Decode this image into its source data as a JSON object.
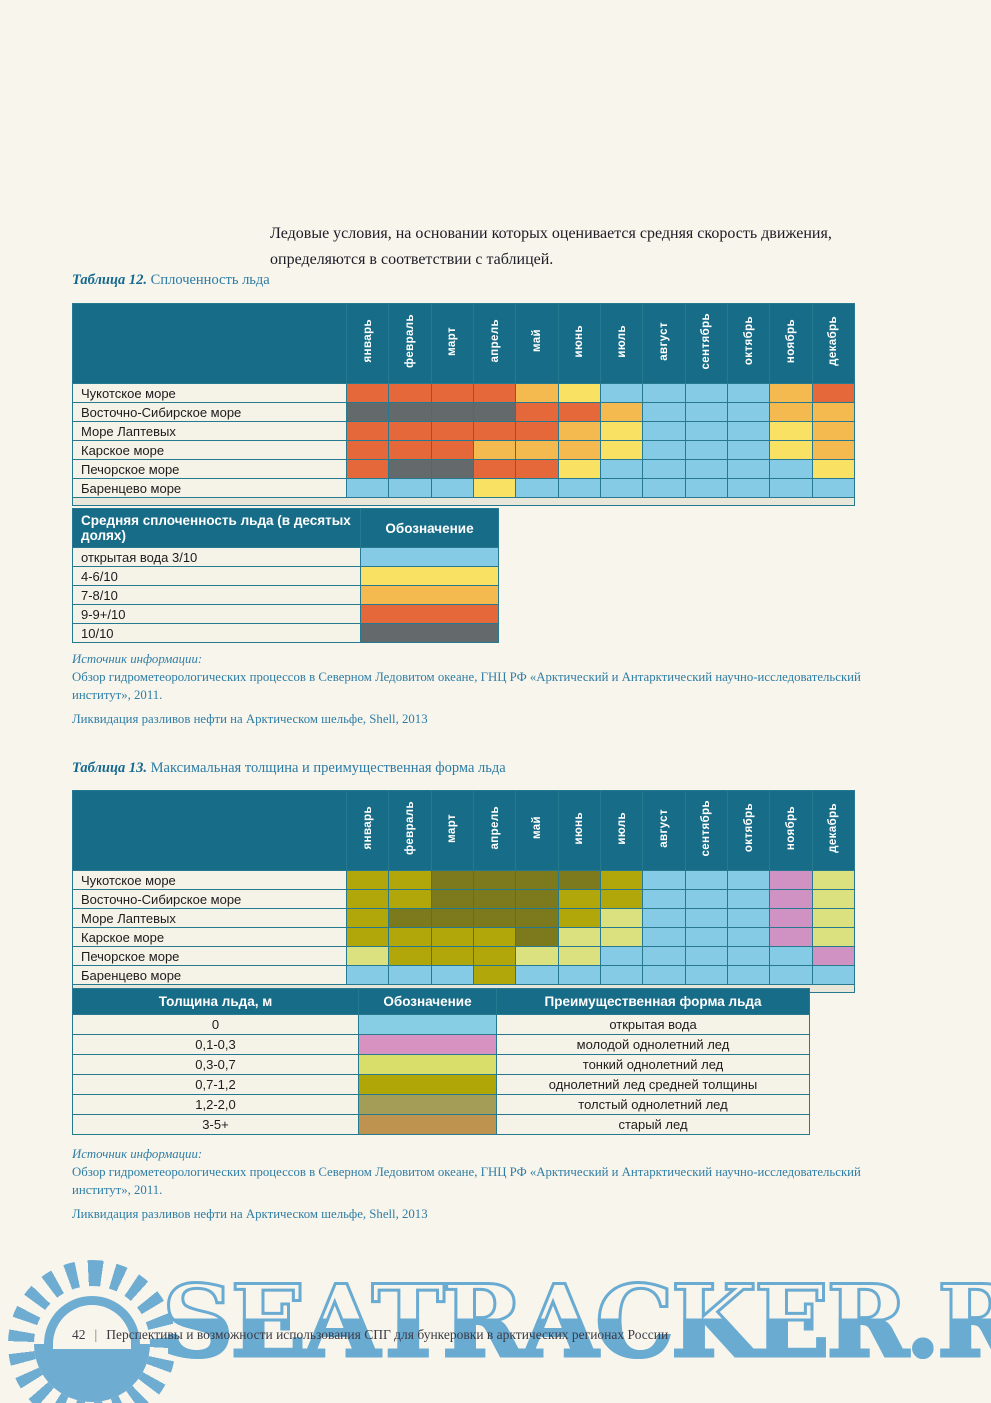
{
  "intro_paragraph": "Ледовые условия, на основании которых оценивается средняя скорость движения, определяются в соответствии с таблицей.",
  "months": [
    "январь",
    "февраль",
    "март",
    "апрель",
    "май",
    "июнь",
    "июль",
    "август",
    "сентябрь",
    "октябрь",
    "ноябрь",
    "декабрь"
  ],
  "palette": {
    "B": "#85CBE5",
    "Y": "#F9E164",
    "A": "#F4B94F",
    "O": "#E5683B",
    "G": "#64696C",
    "M": "#B1A70B",
    "T": "#7D7A1E",
    "N": "#DCE180",
    "P": "#CF92C3"
  },
  "table12": {
    "caption_label": "Таблица 12.",
    "caption_title": "Сплоченность льда",
    "matrix_rows": [
      {
        "sea": "Чукотское море",
        "cells": [
          "O",
          "O",
          "O",
          "O",
          "A",
          "Y",
          "B",
          "B",
          "B",
          "B",
          "A",
          "O"
        ]
      },
      {
        "sea": "Восточно-Сибирское море",
        "cells": [
          "G",
          "G",
          "G",
          "G",
          "O",
          "O",
          "A",
          "B",
          "B",
          "B",
          "A",
          "A"
        ]
      },
      {
        "sea": "Море Лаптевых",
        "cells": [
          "O",
          "O",
          "O",
          "O",
          "O",
          "A",
          "Y",
          "B",
          "B",
          "B",
          "Y",
          "A"
        ]
      },
      {
        "sea": "Карское море",
        "cells": [
          "O",
          "O",
          "O",
          "A",
          "A",
          "A",
          "Y",
          "B",
          "B",
          "B",
          "Y",
          "A"
        ]
      },
      {
        "sea": "Печорское море",
        "cells": [
          "O",
          "G",
          "G",
          "O",
          "O",
          "Y",
          "B",
          "B",
          "B",
          "B",
          "B",
          "Y"
        ]
      },
      {
        "sea": "Баренцево море",
        "cells": [
          "B",
          "B",
          "B",
          "Y",
          "B",
          "B",
          "B",
          "B",
          "B",
          "B",
          "B",
          "B"
        ]
      }
    ],
    "legend": {
      "header_label": "Средняя сплоченность льда (в десятых долях)",
      "header_symbol": "Обозначение",
      "rows": [
        {
          "label": "открытая вода 3/10",
          "color": "#85CBE5"
        },
        {
          "label": "4-6/10",
          "color": "#F9E164"
        },
        {
          "label": "7-8/10",
          "color": "#F4B94F"
        },
        {
          "label": "9-9+/10",
          "color": "#E5683B"
        },
        {
          "label": "10/10",
          "color": "#64696C"
        }
      ]
    },
    "source": {
      "heading": "Источник информации:",
      "line1": "Обзор гидрометеорологических процессов в Северном Ледовитом океане, ГНЦ РФ «Арктический и Антарктический научно-исследовательский институт», 2011.",
      "line2": "Ликвидация разливов нефти на Арктическом шельфе, Shell, 2013"
    }
  },
  "table13": {
    "caption_label": "Таблица 13.",
    "caption_title": "Максимальная толщина и преимущественная форма льда",
    "matrix_rows": [
      {
        "sea": "Чукотское море",
        "cells": [
          "M",
          "M",
          "T",
          "T",
          "T",
          "T",
          "M",
          "B",
          "B",
          "B",
          "P",
          "N"
        ]
      },
      {
        "sea": "Восточно-Сибирское море",
        "cells": [
          "M",
          "M",
          "T",
          "T",
          "T",
          "M",
          "M",
          "B",
          "B",
          "B",
          "P",
          "N"
        ]
      },
      {
        "sea": "Море Лаптевых",
        "cells": [
          "M",
          "T",
          "T",
          "T",
          "T",
          "M",
          "N",
          "B",
          "B",
          "B",
          "P",
          "N"
        ]
      },
      {
        "sea": "Карское море",
        "cells": [
          "M",
          "M",
          "M",
          "M",
          "T",
          "N",
          "N",
          "B",
          "B",
          "B",
          "P",
          "N"
        ]
      },
      {
        "sea": "Печорское море",
        "cells": [
          "N",
          "M",
          "M",
          "M",
          "N",
          "N",
          "B",
          "B",
          "B",
          "B",
          "B",
          "P"
        ]
      },
      {
        "sea": "Баренцево море",
        "cells": [
          "B",
          "B",
          "B",
          "M",
          "B",
          "B",
          "B",
          "B",
          "B",
          "B",
          "B",
          "B"
        ]
      }
    ],
    "legend": {
      "header_thickness": "Толщина льда, м",
      "header_symbol": "Обозначение",
      "header_form": "Преимущественная форма льда",
      "rows": [
        {
          "thickness": "0",
          "color": "#87CEE4",
          "form": "открытая вода"
        },
        {
          "thickness": "0,1-0,3",
          "color": "#D792C2",
          "form": "молодой однолетний лед"
        },
        {
          "thickness": "0,3-0,7",
          "color": "#D9DD6A",
          "form": "тонкий однолетний лед"
        },
        {
          "thickness": "0,7-1,2",
          "color": "#B0A607",
          "form": "однолетний лед средней толщины"
        },
        {
          "thickness": "1,2-2,0",
          "color": "#A39D58",
          "form": "толстый однолетний лед"
        },
        {
          "thickness": "3-5+",
          "color": "#BE9350",
          "form": "старый лед"
        }
      ]
    },
    "source": {
      "heading": "Источник информации:",
      "line1": "Обзор гидрометеорологических процессов в Северном Ледовитом океане, ГНЦ РФ «Арктический и Антарктический научно-исследовательский институт», 2011.",
      "line2": "Ликвидация разливов нефти на Арктическом шельфе, Shell, 2013"
    }
  },
  "footer": {
    "page_number": "42",
    "separator": "|",
    "title": "Перспективы и возможности использования СПГ для бункеровки в арктических регионах России"
  },
  "watermark": {
    "text": "SEATRACKER.RU"
  }
}
